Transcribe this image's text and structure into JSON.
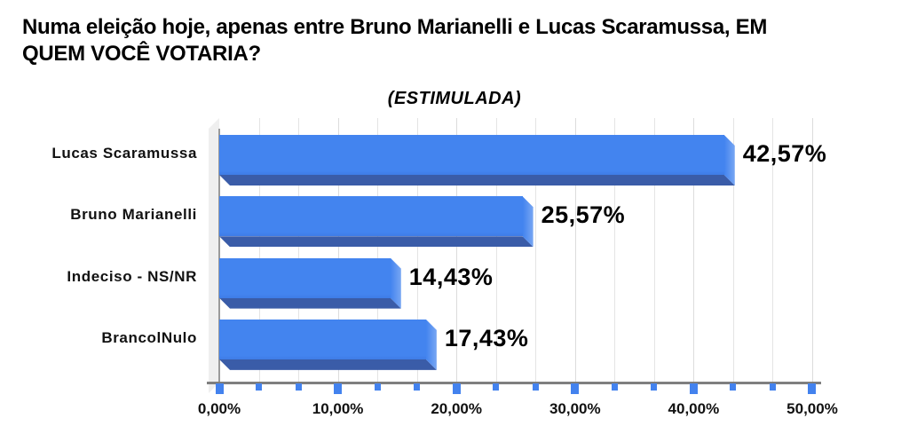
{
  "header": {
    "title": "Numa eleição hoje, apenas entre Bruno Marianelli e Lucas Scaramussa, EM\nQUEM VOCÊ VOTARIA?",
    "subtitle": "(ESTIMULADA)"
  },
  "chart_data": {
    "type": "bar",
    "orientation": "horizontal",
    "title": "Numa eleição hoje, apenas entre Bruno Marianelli e Lucas Scaramussa, EM QUEM VOCÊ VOTARIA?",
    "subtitle": "(ESTIMULADA)",
    "categories": [
      "Lucas Scaramussa",
      "Bruno Marianelli",
      "Indeciso - NS/NR",
      "BrancolNulo"
    ],
    "values": [
      42.57,
      25.57,
      14.43,
      17.43
    ],
    "value_labels": [
      "42,57%",
      "25,57%",
      "14,43%",
      "17,43%"
    ],
    "xlim": [
      0,
      50
    ],
    "x_ticks": [
      0,
      10,
      20,
      30,
      40,
      50
    ],
    "x_tick_labels": [
      "0,00%",
      "10,00%",
      "20,00%",
      "30,00%",
      "40,00%",
      "50,00%"
    ],
    "x_minor_step": 3.3333,
    "grid": "vertical minor gridlines",
    "legend": "none",
    "style": "3d-extruded-bars",
    "colors": {
      "bar_face": "#4384ef",
      "bar_bottom": "#3a5ca8",
      "bar_end_cap": "#79a7f3",
      "tick": "#4382ee",
      "axis_line": "#7f7f7f",
      "gridline": "#e4e4e4",
      "wall": "#efefef",
      "text": "#000000",
      "background": "#ffffff"
    }
  }
}
